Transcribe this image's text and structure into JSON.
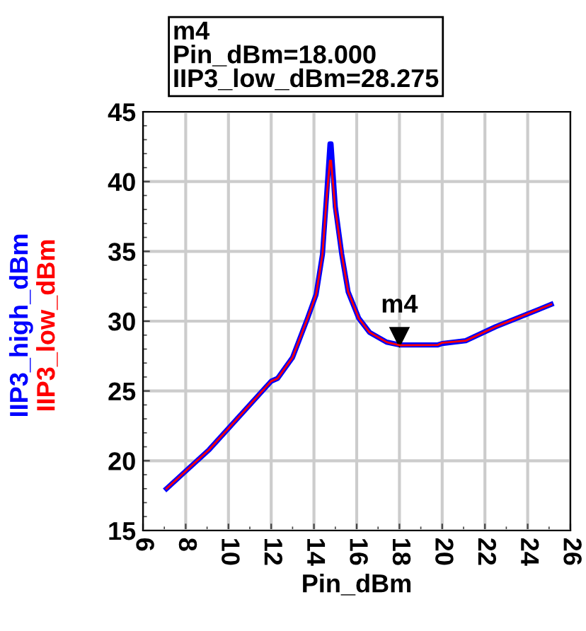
{
  "chart_data": {
    "type": "line",
    "xlabel": "Pin_dBm",
    "x": [
      7.1,
      9.1,
      12.0,
      12.3,
      13.0,
      13.7,
      14.1,
      14.4,
      14.6,
      14.75,
      14.8,
      15.0,
      15.3,
      15.6,
      16.1,
      16.6,
      17.4,
      18.0,
      19.8,
      20.0,
      21.1,
      22.5,
      25.1
    ],
    "series": [
      {
        "name": "IIP3_low_dBm",
        "color": "#ff0000",
        "values": [
          18.0,
          20.8,
          25.7,
          25.9,
          27.4,
          30.2,
          31.9,
          34.8,
          39.0,
          41.5,
          41.5,
          38.0,
          34.8,
          32.1,
          30.2,
          29.2,
          28.5,
          28.275,
          28.3,
          28.45,
          28.6,
          29.6,
          31.2
        ]
      },
      {
        "name": "IIP3_high_dBm",
        "color": "#0000ff",
        "values": [
          18.0,
          20.8,
          25.7,
          25.9,
          27.4,
          30.2,
          31.9,
          34.8,
          39.2,
          42.7,
          42.7,
          38.2,
          34.8,
          32.1,
          30.2,
          29.2,
          28.5,
          28.3,
          28.3,
          28.4,
          28.6,
          29.6,
          31.2
        ]
      }
    ],
    "xlim": [
      6,
      26
    ],
    "xticks": [
      6,
      8,
      10,
      12,
      14,
      16,
      18,
      20,
      22,
      24,
      26
    ],
    "ylim": [
      15,
      45
    ],
    "yticks": [
      15,
      20,
      25,
      30,
      35,
      40,
      45
    ],
    "grid": true,
    "legend": false,
    "marker": "none",
    "line_style": "solid",
    "annotations": [
      "m4\nPin_dBm=18.000\nIIP3_low_dBm=28.275",
      {
        "text": "m4",
        "x": 18,
        "y": 28.275
      }
    ]
  }
}
